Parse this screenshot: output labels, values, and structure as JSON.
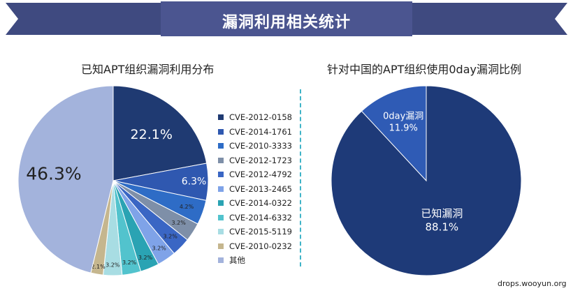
{
  "header": {
    "title": "漏洞利用相关统计"
  },
  "watermark": "drops.wooyun.org",
  "chart_data": [
    {
      "type": "pie",
      "title": "已知APT组织漏洞利用分布",
      "start": "12 o'clock, clockwise",
      "slices": [
        {
          "label": "CVE-2012-0158",
          "value": 22.1,
          "value_label": "22.1%",
          "color": "#1f3a72"
        },
        {
          "label": "CVE-2014-1761",
          "value": 6.3,
          "value_label": "6.3%",
          "color": "#2f58b0"
        },
        {
          "label": "CVE-2010-3333",
          "value": 4.2,
          "value_label": "4.2%",
          "color": "#2e6cc6"
        },
        {
          "label": "CVE-2012-1723",
          "value": 3.2,
          "value_label": "3.2%",
          "color": "#7e8fa8"
        },
        {
          "label": "CVE-2012-4792",
          "value": 3.2,
          "value_label": "3.2%",
          "color": "#3a66c4"
        },
        {
          "label": "CVE-2013-2465",
          "value": 3.2,
          "value_label": "3.2%",
          "color": "#7fa3e8"
        },
        {
          "label": "CVE-2014-0322",
          "value": 3.2,
          "value_label": "3.2%",
          "color": "#2aa3b3"
        },
        {
          "label": "CVE-2014-6332",
          "value": 3.2,
          "value_label": "3.2%",
          "color": "#52c3cd"
        },
        {
          "label": "CVE-2015-5119",
          "value": 3.2,
          "value_label": "3.2%",
          "color": "#a8dde3"
        },
        {
          "label": "CVE-2010-0232",
          "value": 2.1,
          "value_label": "2.1%",
          "color": "#c5b68e"
        },
        {
          "label": "其他",
          "value": 46.3,
          "value_label": "46.3%",
          "color": "#a3b3dc"
        }
      ]
    },
    {
      "type": "pie",
      "title": "针对中国的APT组织使用0day漏洞比例",
      "start": "12 o'clock, clockwise",
      "slices": [
        {
          "label": "已知漏洞",
          "value": 88.1,
          "value_label": "88.1%",
          "color": "#1e3a78"
        },
        {
          "label": "0day漏洞",
          "value": 11.9,
          "value_label": "11.9%",
          "color": "#2f5bb5"
        }
      ]
    }
  ]
}
